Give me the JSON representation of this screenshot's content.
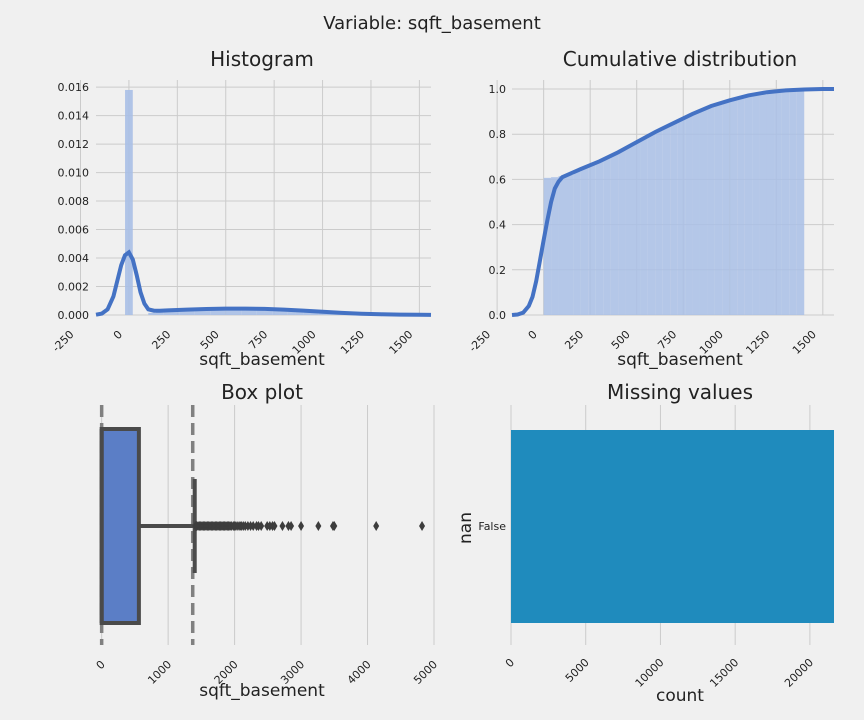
{
  "figure": {
    "suptitle": "Variable: sqft_basement"
  },
  "colors": {
    "background": "#f0f0f0",
    "grid": "#cbcbcb",
    "kde": "#4472c4",
    "hist_fill": "#a9bfe6",
    "box_fill": "#5b7ec6",
    "box_edge": "#4a4a4a",
    "dashed": "#808080",
    "missing_bar": "#1f8bbd"
  },
  "chart_data": [
    {
      "id": "histogram",
      "type": "bar",
      "title": "Histogram",
      "xlabel": "sqft_basement",
      "ylabel": "",
      "xlim": [
        -170,
        1560
      ],
      "ylim": [
        0,
        0.0165
      ],
      "grid": true,
      "xticks": [
        -250,
        0,
        250,
        500,
        750,
        1000,
        1250,
        1500
      ],
      "yticks": [
        0.0,
        0.002,
        0.004,
        0.006,
        0.008,
        0.01,
        0.012,
        0.014,
        0.016
      ],
      "ytick_labels": [
        "0.000",
        "0.002",
        "0.004",
        "0.006",
        "0.008",
        "0.010",
        "0.012",
        "0.014",
        "0.016"
      ],
      "bin_width": 40,
      "bins": [
        {
          "x": 0,
          "density": 0.0158
        },
        {
          "x": 120,
          "density": 0.00015
        },
        {
          "x": 160,
          "density": 0.0002
        },
        {
          "x": 200,
          "density": 0.00025
        },
        {
          "x": 240,
          "density": 0.0003
        },
        {
          "x": 280,
          "density": 0.0003
        },
        {
          "x": 320,
          "density": 0.00032
        },
        {
          "x": 360,
          "density": 0.00034
        },
        {
          "x": 400,
          "density": 0.00034
        },
        {
          "x": 440,
          "density": 0.00036
        },
        {
          "x": 480,
          "density": 0.00036
        },
        {
          "x": 520,
          "density": 0.00036
        },
        {
          "x": 560,
          "density": 0.00036
        },
        {
          "x": 600,
          "density": 0.00034
        },
        {
          "x": 640,
          "density": 0.00034
        },
        {
          "x": 680,
          "density": 0.00032
        },
        {
          "x": 720,
          "density": 0.0003
        },
        {
          "x": 760,
          "density": 0.00028
        },
        {
          "x": 800,
          "density": 0.00026
        },
        {
          "x": 840,
          "density": 0.00024
        },
        {
          "x": 880,
          "density": 0.00022
        },
        {
          "x": 920,
          "density": 0.0002
        },
        {
          "x": 960,
          "density": 0.00018
        },
        {
          "x": 1000,
          "density": 0.00015
        },
        {
          "x": 1040,
          "density": 0.00012
        },
        {
          "x": 1080,
          "density": 0.0001
        },
        {
          "x": 1120,
          "density": 8e-05
        },
        {
          "x": 1160,
          "density": 6e-05
        },
        {
          "x": 1200,
          "density": 5e-05
        },
        {
          "x": 1240,
          "density": 4e-05
        },
        {
          "x": 1280,
          "density": 3e-05
        },
        {
          "x": 1320,
          "density": 2e-05
        },
        {
          "x": 1360,
          "density": 2e-05
        }
      ],
      "kde": {
        "x": [
          -170,
          -140,
          -110,
          -80,
          -60,
          -40,
          -20,
          0,
          20,
          40,
          60,
          80,
          100,
          130,
          160,
          200,
          250,
          300,
          400,
          500,
          600,
          700,
          800,
          900,
          1000,
          1100,
          1200,
          1300,
          1400,
          1500,
          1560
        ],
        "y": [
          2e-05,
          0.0001,
          0.0004,
          0.0013,
          0.0024,
          0.0035,
          0.0042,
          0.0044,
          0.0039,
          0.0028,
          0.0016,
          0.0008,
          0.0004,
          0.0003,
          0.0003,
          0.00032,
          0.00035,
          0.00038,
          0.00042,
          0.00045,
          0.00045,
          0.00043,
          0.00038,
          0.00031,
          0.00023,
          0.00015,
          9e-05,
          5e-05,
          3e-05,
          2e-05,
          1e-05
        ]
      }
    },
    {
      "id": "cumulative",
      "type": "area",
      "title": "Cumulative distribution",
      "xlabel": "sqft_basement",
      "ylabel": "",
      "xlim": [
        -170,
        1560
      ],
      "ylim": [
        0,
        1.04
      ],
      "grid": true,
      "xticks": [
        -250,
        0,
        250,
        500,
        750,
        1000,
        1250,
        1500
      ],
      "yticks": [
        0.0,
        0.2,
        0.4,
        0.6,
        0.8,
        1.0
      ],
      "ytick_labels": [
        "0.0",
        "0.2",
        "0.4",
        "0.6",
        "0.8",
        "1.0"
      ],
      "bin_width": 40,
      "bins_x": [
        0,
        40,
        80,
        120,
        160,
        200,
        240,
        280,
        320,
        360,
        400,
        440,
        480,
        520,
        560,
        600,
        640,
        680,
        720,
        760,
        800,
        840,
        880,
        920,
        960,
        1000,
        1040,
        1080,
        1120,
        1160,
        1200,
        1240,
        1280,
        1320,
        1360
      ],
      "bins_y": [
        0.607,
        0.61,
        0.615,
        0.62,
        0.635,
        0.65,
        0.665,
        0.68,
        0.695,
        0.712,
        0.73,
        0.748,
        0.765,
        0.783,
        0.8,
        0.817,
        0.834,
        0.85,
        0.866,
        0.881,
        0.896,
        0.909,
        0.921,
        0.932,
        0.942,
        0.951,
        0.959,
        0.966,
        0.972,
        0.977,
        0.982,
        0.986,
        0.99,
        0.994,
        1.0
      ],
      "cdf": {
        "x": [
          -170,
          -140,
          -110,
          -80,
          -60,
          -40,
          -20,
          0,
          20,
          40,
          60,
          80,
          100,
          150,
          200,
          300,
          400,
          500,
          600,
          700,
          800,
          900,
          1000,
          1100,
          1200,
          1300,
          1400,
          1500,
          1560
        ],
        "y": [
          0.0,
          0.002,
          0.01,
          0.04,
          0.08,
          0.15,
          0.24,
          0.33,
          0.42,
          0.5,
          0.56,
          0.59,
          0.61,
          0.628,
          0.646,
          0.68,
          0.72,
          0.765,
          0.81,
          0.85,
          0.89,
          0.925,
          0.95,
          0.972,
          0.986,
          0.994,
          0.998,
          1.0,
          1.0
        ]
      }
    },
    {
      "id": "boxplot",
      "type": "box",
      "title": "Box plot",
      "xlabel": "sqft_basement",
      "xlim": [
        -10,
        5000
      ],
      "xticks": [
        0,
        1000,
        2000,
        3000,
        4000,
        5000
      ],
      "grid": true,
      "q1": 0,
      "median": 0,
      "q3": 560,
      "whisker_low": 0,
      "whisker_high": 1400,
      "dashed_lines": [
        0,
        1370
      ],
      "outliers": [
        1410,
        1430,
        1450,
        1470,
        1490,
        1510,
        1530,
        1550,
        1570,
        1590,
        1610,
        1630,
        1650,
        1670,
        1690,
        1710,
        1730,
        1750,
        1770,
        1790,
        1810,
        1830,
        1850,
        1870,
        1890,
        1910,
        1930,
        1950,
        1980,
        2000,
        2020,
        2050,
        2080,
        2100,
        2130,
        2160,
        2200,
        2240,
        2280,
        2330,
        2360,
        2400,
        2490,
        2530,
        2570,
        2600,
        2720,
        2810,
        2850,
        3000,
        3260,
        3480,
        3500,
        4130,
        4820
      ]
    },
    {
      "id": "missing",
      "type": "bar",
      "orientation": "horizontal",
      "title": "Missing values",
      "xlabel": "count",
      "ylabel": "nan",
      "categories": [
        "False"
      ],
      "values": [
        21613
      ],
      "xlim": [
        0,
        21613
      ],
      "xticks": [
        0,
        5000,
        10000,
        15000,
        20000
      ],
      "grid": true
    }
  ]
}
